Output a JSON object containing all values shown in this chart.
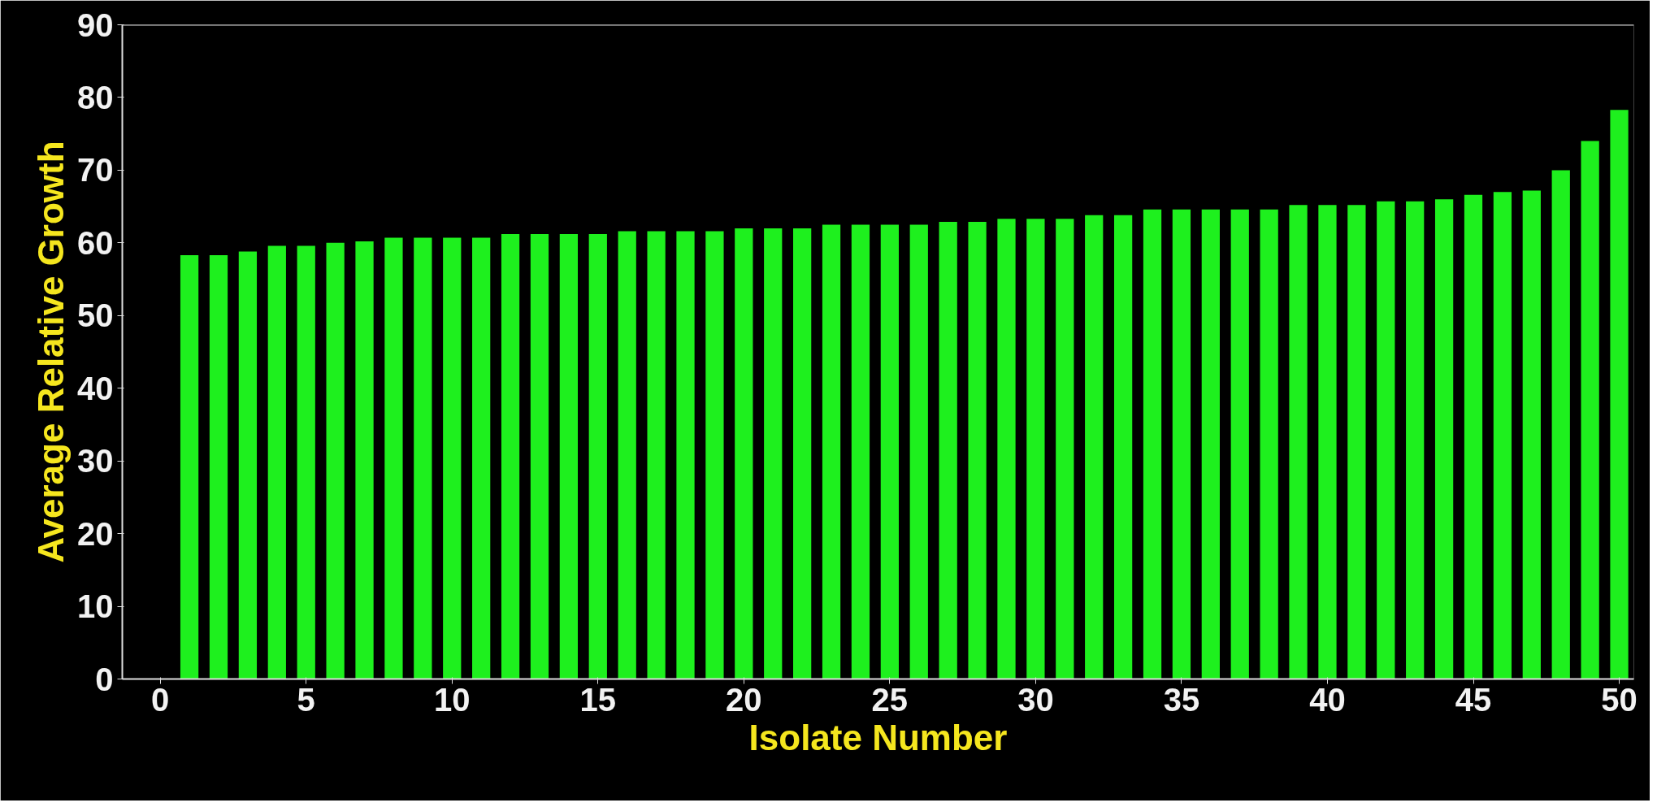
{
  "chart_data": {
    "type": "bar",
    "xlabel": "Isolate Number",
    "ylabel": "Average Relative Growth",
    "x": [
      1,
      2,
      3,
      4,
      5,
      6,
      7,
      8,
      9,
      10,
      11,
      12,
      13,
      14,
      15,
      16,
      17,
      18,
      19,
      20,
      21,
      22,
      23,
      24,
      25,
      26,
      27,
      28,
      29,
      30,
      31,
      32,
      33,
      34,
      35,
      36,
      37,
      38,
      39,
      40,
      41,
      42,
      43,
      44,
      45,
      46,
      47,
      48,
      49,
      50
    ],
    "values": [
      58.3,
      58.3,
      58.8,
      59.6,
      59.6,
      60,
      60.2,
      60.7,
      60.7,
      60.7,
      60.7,
      61.2,
      61.2,
      61.2,
      61.2,
      61.6,
      61.6,
      61.6,
      61.6,
      62,
      62,
      62,
      62.5,
      62.5,
      62.5,
      62.5,
      62.9,
      62.9,
      63.3,
      63.3,
      63.3,
      63.8,
      63.8,
      64.6,
      64.6,
      64.6,
      64.6,
      64.6,
      65.2,
      65.2,
      65.2,
      65.7,
      65.7,
      66,
      66.6,
      67,
      67.2,
      70,
      74,
      78.3
    ],
    "color": "#1ef01e",
    "xlim": [
      -1.3,
      50.5
    ],
    "ylim": [
      0,
      90
    ],
    "xticks": [
      0,
      5,
      10,
      15,
      20,
      25,
      30,
      35,
      40,
      45,
      50
    ],
    "yticks": [
      0,
      10,
      20,
      30,
      40,
      50,
      60,
      70,
      80,
      90
    ],
    "grid": false
  }
}
